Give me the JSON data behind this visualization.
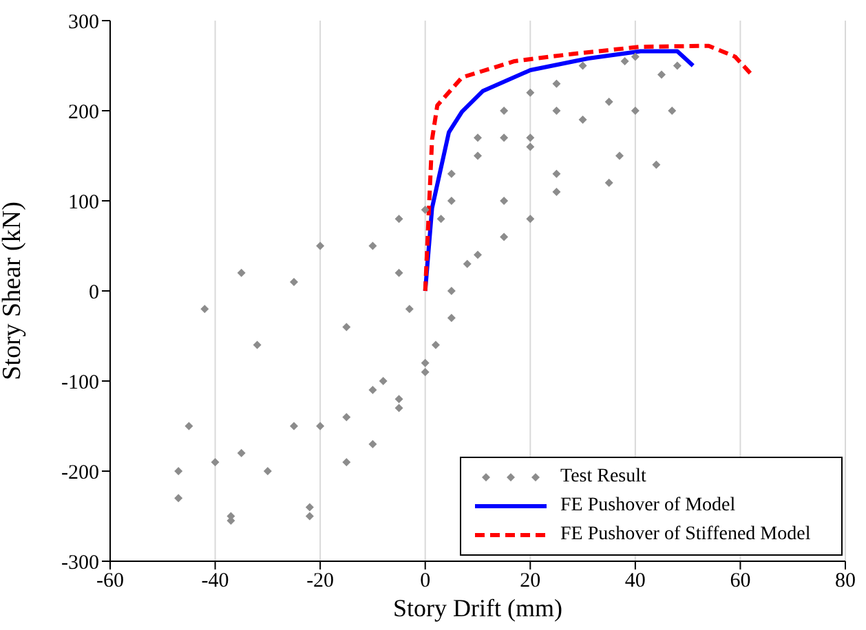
{
  "chart_data": {
    "type": "scatter",
    "xlabel": "Story Drift (mm)",
    "ylabel": "Story Shear (kN)",
    "xlim": [
      -60,
      80
    ],
    "xticks": [
      -60,
      -40,
      -20,
      0,
      20,
      40,
      60,
      80
    ],
    "ylim": [
      -300,
      300
    ],
    "yticks": [
      -300,
      -200,
      -100,
      0,
      100,
      200,
      300
    ],
    "grid": "x",
    "legend": "bottom right",
    "series": [
      {
        "name": "Test Result",
        "marker": "diamond",
        "color": "#8c8c8c",
        "x": [
          -47,
          -45,
          -42,
          -35,
          -20,
          -5,
          5,
          20,
          35,
          45,
          48,
          47,
          44,
          35,
          20,
          5,
          0,
          -10,
          -25,
          -40,
          -47,
          -37,
          -35,
          -32,
          -25,
          -10,
          0,
          10,
          25,
          38,
          40,
          40,
          37,
          25,
          10,
          0,
          -15,
          -30,
          -37,
          -22,
          -20,
          -15,
          -5,
          5,
          15,
          25,
          30,
          30,
          25,
          15,
          5,
          -5,
          -15,
          -22,
          -10,
          -8,
          -3,
          3,
          10,
          15,
          20,
          20,
          15,
          8,
          2,
          -5
        ],
        "values": [
          -230,
          -150,
          -20,
          20,
          50,
          80,
          130,
          170,
          210,
          240,
          250,
          200,
          140,
          120,
          80,
          0,
          -80,
          -110,
          -150,
          -190,
          -200,
          -255,
          -180,
          -60,
          10,
          50,
          90,
          150,
          200,
          255,
          260,
          200,
          150,
          110,
          40,
          -90,
          -140,
          -200,
          -250,
          -250,
          -150,
          -40,
          20,
          100,
          170,
          230,
          250,
          190,
          130,
          60,
          -30,
          -120,
          -190,
          -240,
          -170,
          -100,
          -20,
          80,
          170,
          200,
          220,
          160,
          100,
          30,
          -60,
          -130
        ]
      },
      {
        "name": "FE Pushover of Model",
        "type": "line",
        "marker": "none",
        "line_style": "solid",
        "color": "#0000ff",
        "x": [
          0,
          1.3,
          4.5,
          7,
          11,
          20,
          31,
          41,
          48,
          51
        ],
        "values": [
          0,
          92,
          176,
          199,
          222,
          245,
          258,
          266,
          266,
          250
        ]
      },
      {
        "name": "FE Pushover of Stiffened Model",
        "type": "line",
        "marker": "none",
        "line_style": "dashed",
        "color": "#ff0000",
        "x": [
          0,
          1.3,
          2.3,
          7,
          17,
          28,
          41,
          54,
          59,
          62
        ],
        "values": [
          0,
          168,
          206,
          237,
          255,
          263,
          271,
          272,
          260,
          241
        ]
      }
    ]
  }
}
